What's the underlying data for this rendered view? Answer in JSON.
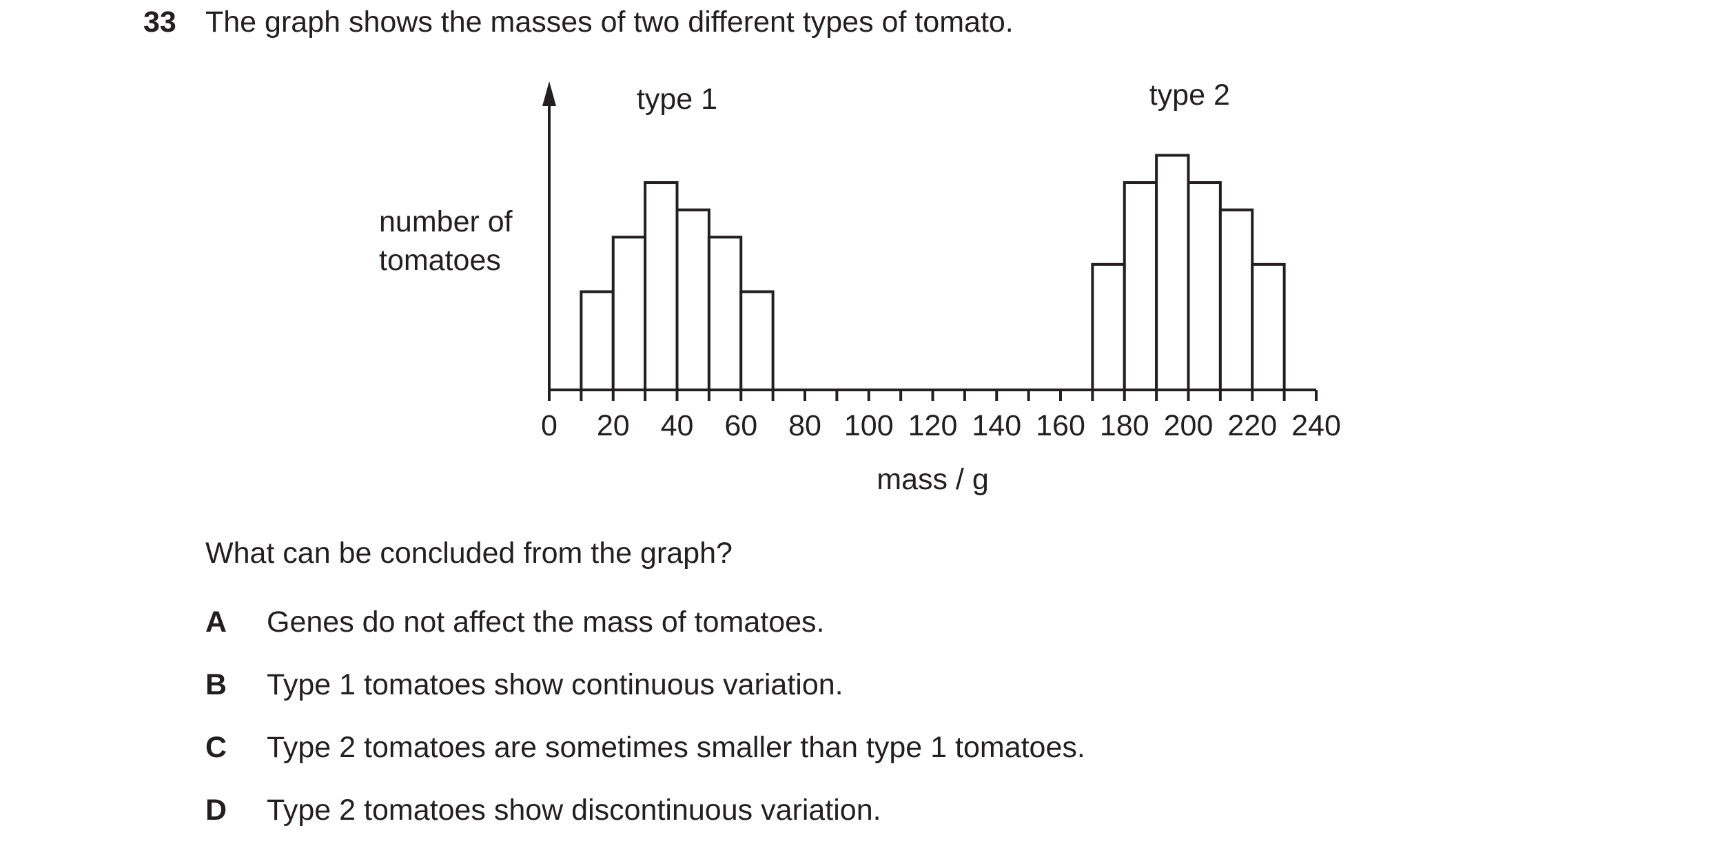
{
  "question": {
    "number": "33",
    "text": "The graph shows the masses of two different types of tomato.",
    "prompt": "What can be concluded from the graph?",
    "options": [
      {
        "letter": "A",
        "text": "Genes do not affect the mass of tomatoes."
      },
      {
        "letter": "B",
        "text": "Type 1 tomatoes show continuous variation."
      },
      {
        "letter": "C",
        "text": "Type 2 tomatoes are sometimes smaller than type 1 tomatoes."
      },
      {
        "letter": "D",
        "text": "Type 2 tomatoes show discontinuous variation."
      }
    ]
  },
  "chart_data": {
    "type": "bar",
    "title": "",
    "xlabel": "mass / g",
    "ylabel_lines": [
      "number of",
      "tomatoes"
    ],
    "xlim": [
      0,
      240
    ],
    "ylim": [
      0,
      10
    ],
    "x_ticks": [
      0,
      20,
      40,
      60,
      80,
      100,
      120,
      140,
      160,
      180,
      200,
      220,
      240
    ],
    "minor_tick_step": 10,
    "grid": false,
    "legend": "none",
    "series": [
      {
        "name": "type 1",
        "bins": [
          [
            10,
            20
          ],
          [
            20,
            30
          ],
          [
            30,
            40
          ],
          [
            40,
            50
          ],
          [
            50,
            60
          ],
          [
            60,
            70
          ]
        ],
        "values": [
          3.6,
          5.6,
          7.6,
          6.6,
          5.6,
          3.6
        ]
      },
      {
        "name": "type 2",
        "bins": [
          [
            170,
            180
          ],
          [
            180,
            190
          ],
          [
            190,
            200
          ],
          [
            200,
            210
          ],
          [
            210,
            220
          ],
          [
            220,
            230
          ]
        ],
        "values": [
          4.6,
          7.6,
          8.6,
          7.6,
          6.6,
          4.6
        ]
      }
    ],
    "colors": {
      "bar_fill": "#ffffff",
      "stroke": "#231f20"
    }
  }
}
